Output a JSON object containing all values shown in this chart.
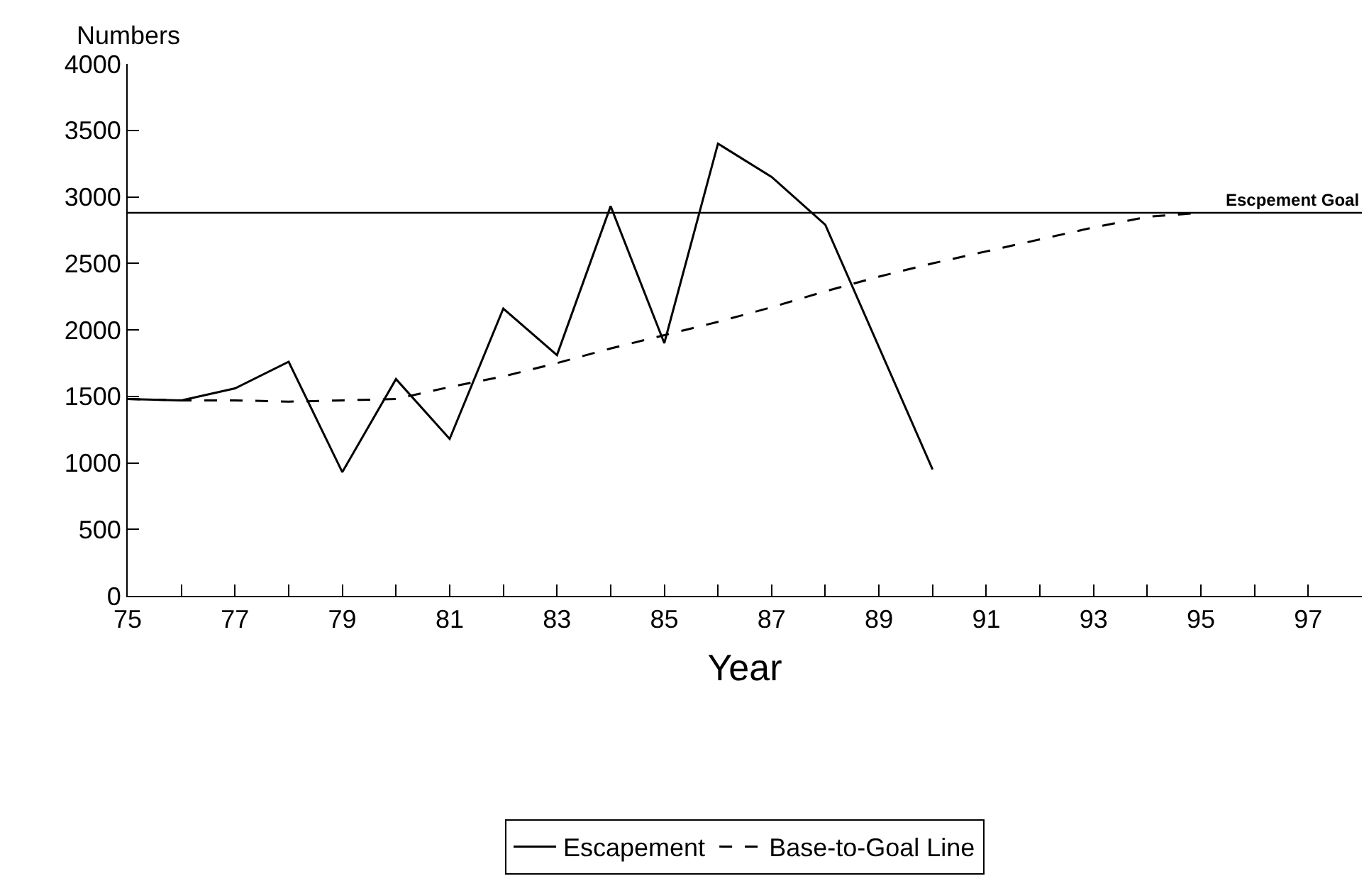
{
  "chart_data": {
    "type": "line",
    "xlabel": "Year",
    "ylabel": "Numbers",
    "x": [
      75,
      76,
      77,
      78,
      79,
      80,
      81,
      82,
      83,
      84,
      85,
      86,
      87,
      88,
      89,
      90,
      91,
      92,
      93,
      94,
      95
    ],
    "series": [
      {
        "name": "Escapement",
        "color": "#000000",
        "line_style": "solid",
        "values": [
          1480,
          1470,
          1560,
          1760,
          930,
          1630,
          1180,
          2160,
          1810,
          2930,
          1900,
          3400,
          3150,
          2790,
          1870,
          950,
          null,
          null,
          null,
          null,
          null
        ]
      },
      {
        "name": "Base-to-Goal Line",
        "color": "#000000",
        "line_style": "dashed",
        "values": [
          1480,
          1470,
          1470,
          1460,
          1470,
          1480,
          1570,
          1650,
          1750,
          1860,
          1960,
          2060,
          2170,
          2290,
          2400,
          2500,
          2590,
          2680,
          2770,
          2850,
          2880
        ]
      }
    ],
    "ref_lines": [
      {
        "axis": "y",
        "value": 2880,
        "label": "Escpement Goal",
        "color": "#000000",
        "line_style": "solid"
      }
    ],
    "xlim": [
      75,
      98
    ],
    "xticks": [
      75,
      {
        "value": 76,
        "label": null
      },
      77,
      {
        "value": 78,
        "label": null
      },
      79,
      {
        "value": 80,
        "label": null
      },
      81,
      {
        "value": 82,
        "label": null
      },
      83,
      {
        "value": 84,
        "label": null
      },
      85,
      {
        "value": 86,
        "label": null
      },
      87,
      {
        "value": 88,
        "label": null
      },
      89,
      {
        "value": 90,
        "label": null
      },
      91,
      {
        "value": 92,
        "label": null
      },
      93,
      {
        "value": 94,
        "label": null
      },
      95,
      {
        "value": 96,
        "label": null
      },
      97
    ],
    "ylim": [
      0,
      4000
    ],
    "yticks": [
      0,
      500,
      1000,
      1500,
      2000,
      2500,
      3000,
      3500,
      4000
    ],
    "legend": "bottom",
    "marker": "none"
  }
}
